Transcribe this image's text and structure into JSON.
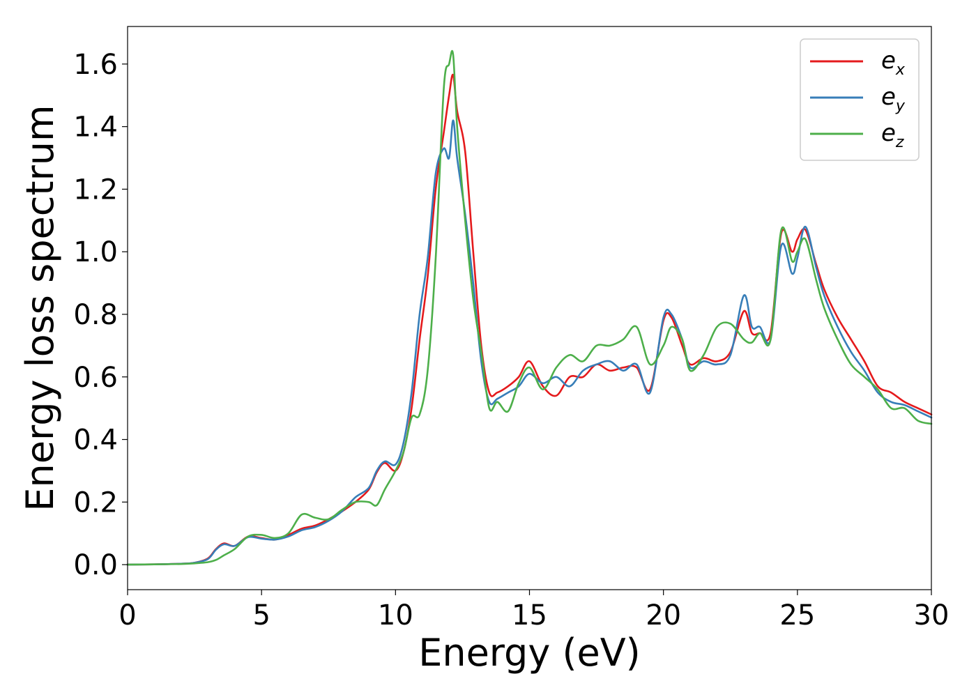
{
  "chart_data": {
    "type": "line",
    "xlabel": "Energy (eV)",
    "ylabel": "Energy loss spectrum",
    "xlim": [
      0,
      30
    ],
    "ylim": [
      -0.08,
      1.72
    ],
    "xticks": [
      0,
      5,
      10,
      15,
      20,
      25,
      30
    ],
    "xtick_labels": [
      "0",
      "5",
      "10",
      "15",
      "20",
      "25",
      "30"
    ],
    "yticks": [
      0.0,
      0.2,
      0.4,
      0.6,
      0.8,
      1.0,
      1.2,
      1.4,
      1.6
    ],
    "ytick_labels": [
      "0.0",
      "0.2",
      "0.4",
      "0.6",
      "0.8",
      "1.0",
      "1.2",
      "1.4",
      "1.6"
    ],
    "grid": false,
    "legend_position": "top-right",
    "series": [
      {
        "name": "e_x",
        "label_base": "e",
        "label_sub": "x",
        "color": "#e41a1c",
        "x": [
          0,
          1,
          2,
          2.5,
          3,
          3.3,
          3.6,
          4,
          4.5,
          5,
          5.5,
          6,
          6.5,
          7,
          7.5,
          8,
          8.5,
          9,
          9.3,
          9.6,
          10,
          10.3,
          10.6,
          10.9,
          11.2,
          11.5,
          11.8,
          12.0,
          12.15,
          12.3,
          12.6,
          12.9,
          13.2,
          13.5,
          13.8,
          14.2,
          14.6,
          15.0,
          15.5,
          16.0,
          16.5,
          17.0,
          17.5,
          18.0,
          18.5,
          19.0,
          19.5,
          20.0,
          20.3,
          20.7,
          21.0,
          21.5,
          22.0,
          22.5,
          23.0,
          23.3,
          23.6,
          24.0,
          24.4,
          24.8,
          25.0,
          25.3,
          25.7,
          26.0,
          26.5,
          27.0,
          27.5,
          28.0,
          28.5,
          29.0,
          29.5,
          30
        ],
        "y": [
          0.0,
          0.001,
          0.003,
          0.006,
          0.02,
          0.05,
          0.068,
          0.06,
          0.09,
          0.085,
          0.08,
          0.095,
          0.115,
          0.125,
          0.145,
          0.17,
          0.2,
          0.24,
          0.295,
          0.325,
          0.3,
          0.36,
          0.5,
          0.72,
          0.92,
          1.2,
          1.38,
          1.5,
          1.565,
          1.45,
          1.32,
          1.0,
          0.7,
          0.55,
          0.55,
          0.57,
          0.6,
          0.65,
          0.57,
          0.54,
          0.6,
          0.6,
          0.64,
          0.62,
          0.63,
          0.63,
          0.56,
          0.78,
          0.79,
          0.7,
          0.64,
          0.66,
          0.65,
          0.68,
          0.81,
          0.74,
          0.74,
          0.74,
          1.06,
          1.0,
          1.04,
          1.07,
          0.96,
          0.88,
          0.79,
          0.72,
          0.65,
          0.57,
          0.55,
          0.52,
          0.5,
          0.48
        ]
      },
      {
        "name": "e_y",
        "label_base": "e",
        "label_sub": "y",
        "color": "#377eb8",
        "x": [
          0,
          1,
          2,
          2.5,
          3,
          3.3,
          3.6,
          4,
          4.5,
          5,
          5.5,
          6,
          6.5,
          7,
          7.5,
          8,
          8.5,
          9,
          9.3,
          9.6,
          10,
          10.3,
          10.6,
          10.9,
          11.2,
          11.5,
          11.8,
          12.0,
          12.15,
          12.3,
          12.6,
          12.9,
          13.2,
          13.5,
          13.8,
          14.2,
          14.6,
          15.0,
          15.5,
          16.0,
          16.5,
          17.0,
          17.5,
          18.0,
          18.5,
          19.0,
          19.5,
          20.0,
          20.3,
          20.7,
          21.0,
          21.5,
          22.0,
          22.5,
          23.0,
          23.3,
          23.6,
          24.0,
          24.4,
          24.8,
          25.0,
          25.3,
          25.7,
          26.0,
          26.5,
          27.0,
          27.5,
          28.0,
          28.5,
          29.0,
          29.5,
          30
        ],
        "y": [
          0.0,
          0.001,
          0.003,
          0.006,
          0.018,
          0.048,
          0.065,
          0.06,
          0.088,
          0.083,
          0.08,
          0.09,
          0.11,
          0.12,
          0.14,
          0.17,
          0.215,
          0.245,
          0.3,
          0.33,
          0.32,
          0.39,
          0.55,
          0.8,
          0.98,
          1.25,
          1.33,
          1.3,
          1.42,
          1.3,
          1.12,
          0.9,
          0.65,
          0.52,
          0.53,
          0.55,
          0.57,
          0.61,
          0.58,
          0.6,
          0.57,
          0.62,
          0.64,
          0.65,
          0.62,
          0.64,
          0.55,
          0.79,
          0.8,
          0.72,
          0.63,
          0.65,
          0.64,
          0.67,
          0.86,
          0.76,
          0.76,
          0.72,
          1.02,
          0.93,
          0.98,
          1.08,
          0.95,
          0.86,
          0.76,
          0.68,
          0.62,
          0.55,
          0.52,
          0.51,
          0.49,
          0.47
        ]
      },
      {
        "name": "e_z",
        "label_base": "e",
        "label_sub": "z",
        "color": "#4daf4a",
        "x": [
          0,
          1,
          2,
          2.5,
          3,
          3.3,
          3.6,
          4,
          4.5,
          5,
          5.5,
          6,
          6.5,
          7,
          7.5,
          8,
          8.5,
          9,
          9.3,
          9.6,
          10,
          10.3,
          10.6,
          10.9,
          11.2,
          11.5,
          11.8,
          12.0,
          12.15,
          12.3,
          12.6,
          12.9,
          13.2,
          13.5,
          13.8,
          14.2,
          14.6,
          15.0,
          15.5,
          16.0,
          16.5,
          17.0,
          17.5,
          18.0,
          18.5,
          19.0,
          19.5,
          20.0,
          20.3,
          20.7,
          21.0,
          21.5,
          22.0,
          22.5,
          23.0,
          23.3,
          23.6,
          24.0,
          24.4,
          24.8,
          25.0,
          25.3,
          25.7,
          26.0,
          26.5,
          27.0,
          27.5,
          28.0,
          28.5,
          29.0,
          29.5,
          30
        ],
        "y": [
          0.0,
          0.001,
          0.002,
          0.004,
          0.008,
          0.015,
          0.03,
          0.05,
          0.09,
          0.095,
          0.085,
          0.1,
          0.16,
          0.15,
          0.145,
          0.175,
          0.2,
          0.2,
          0.19,
          0.24,
          0.3,
          0.36,
          0.47,
          0.48,
          0.62,
          0.98,
          1.52,
          1.6,
          1.63,
          1.4,
          1.1,
          0.85,
          0.68,
          0.5,
          0.52,
          0.49,
          0.58,
          0.63,
          0.56,
          0.63,
          0.67,
          0.65,
          0.7,
          0.7,
          0.72,
          0.76,
          0.64,
          0.7,
          0.76,
          0.72,
          0.62,
          0.67,
          0.76,
          0.77,
          0.72,
          0.71,
          0.74,
          0.72,
          1.07,
          0.97,
          1.0,
          1.04,
          0.91,
          0.82,
          0.72,
          0.64,
          0.6,
          0.56,
          0.5,
          0.5,
          0.46,
          0.45
        ]
      }
    ]
  }
}
